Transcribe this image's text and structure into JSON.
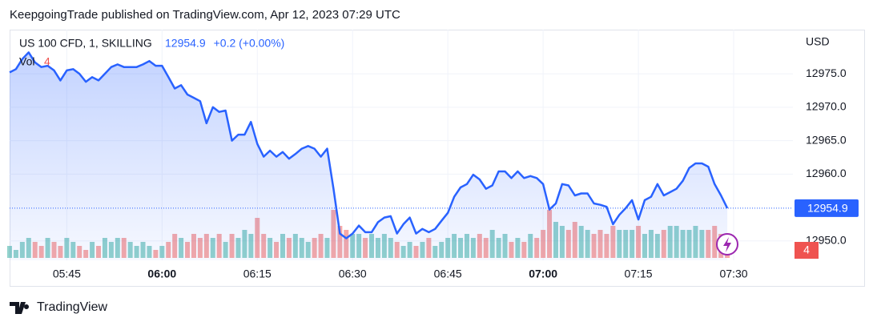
{
  "header": "KeepgoingTrade published on TradingView.com, Apr 12, 2023 07:29 UTC",
  "footer": "TradingView",
  "chart_data": {
    "type": "area",
    "title": "US 100 CFD, 1, SKILLING",
    "change": "+0.2 (+0.00%)",
    "currency": "USD",
    "color": "#2962ff",
    "grid": true,
    "categories": [
      null,
      null,
      null,
      null,
      null,
      null,
      null,
      null,
      null,
      "05:45",
      null,
      null,
      null,
      null,
      null,
      null,
      null,
      null,
      null,
      null,
      null,
      null,
      null,
      null,
      "06:00",
      null,
      null,
      null,
      null,
      null,
      null,
      null,
      null,
      null,
      null,
      null,
      null,
      null,
      null,
      "06:15",
      null,
      null,
      null,
      null,
      null,
      null,
      null,
      null,
      null,
      null,
      null,
      null,
      null,
      null,
      "06:30",
      null,
      null,
      null,
      null,
      null,
      null,
      null,
      null,
      null,
      null,
      null,
      null,
      null,
      null,
      "06:45",
      null,
      null,
      null,
      null,
      null,
      null,
      null,
      null,
      null,
      null,
      null,
      null,
      null,
      null,
      "07:00",
      null,
      null,
      null,
      null,
      null,
      null,
      null,
      null,
      null,
      null,
      null,
      null,
      null,
      null,
      "07:15",
      null,
      null,
      null,
      null,
      null,
      null,
      null,
      null,
      null,
      null,
      null,
      null,
      null,
      null,
      "07:30"
    ],
    "values": [
      12975.2,
      12975.7,
      12977.2,
      12978.2,
      12976.7,
      12976.0,
      12976.2,
      12975.5,
      12974.0,
      12975.5,
      12975.7,
      12975.0,
      12973.8,
      12974.5,
      12974.0,
      12975.0,
      12976.0,
      12976.4,
      12976.0,
      12976.0,
      12976.0,
      12976.4,
      12976.9,
      12976.2,
      12976.2,
      12974.5,
      12972.8,
      12973.3,
      12971.9,
      12971.4,
      12970.9,
      12967.6,
      12970.0,
      12969.3,
      12969.5,
      12965.0,
      12965.9,
      12965.9,
      12967.8,
      12964.5,
      12962.6,
      12963.5,
      12962.6,
      12963.3,
      12962.3,
      12963.0,
      12963.8,
      12964.2,
      12963.8,
      12962.6,
      12963.8,
      12957.8,
      12951.1,
      12950.4,
      12951.1,
      12952.3,
      12951.3,
      12951.3,
      12952.8,
      12953.5,
      12953.7,
      12951.1,
      12952.5,
      12953.5,
      12951.1,
      12951.8,
      12951.3,
      12951.8,
      12953.0,
      12954.2,
      12956.6,
      12958.0,
      12958.5,
      12959.9,
      12959.2,
      12957.8,
      12958.3,
      12960.4,
      12960.4,
      12959.4,
      12960.4,
      12959.4,
      12959.7,
      12959.4,
      12958.5,
      12954.7,
      12955.6,
      12958.5,
      12958.3,
      12956.8,
      12957.1,
      12957.1,
      12955.6,
      12955.4,
      12955.1,
      12952.5,
      12953.9,
      12954.9,
      12956.1,
      12953.2,
      12956.1,
      12956.6,
      12958.5,
      12956.8,
      12957.3,
      12957.8,
      12959.0,
      12960.9,
      12961.6,
      12961.6,
      12961.1,
      12958.5,
      12956.8,
      12954.9,
      null
    ],
    "ylim": [
      12947.1,
      12981.6
    ],
    "yticks": [
      {
        "value": 12950,
        "label": "12950.0"
      },
      {
        "value": 12960,
        "label": "12960.0"
      },
      {
        "value": 12965,
        "label": "12965.0"
      },
      {
        "value": 12970,
        "label": "12970.0"
      },
      {
        "value": 12975,
        "label": "12975.0"
      }
    ],
    "volume": {
      "name": "Vol",
      "up_color": "#26a69a",
      "down_color": "#ef5350",
      "values": [
        3,
        2,
        4,
        5,
        4,
        3,
        5,
        4,
        3,
        5,
        4,
        3,
        2,
        4,
        3,
        5,
        4,
        5,
        5,
        4,
        3,
        4,
        3,
        2,
        3,
        4,
        6,
        5,
        4,
        6,
        5,
        6,
        5,
        6,
        4,
        6,
        5,
        7,
        6,
        10,
        6,
        5,
        4,
        6,
        5,
        6,
        5,
        4,
        5,
        6,
        5,
        12,
        8,
        7,
        6,
        6,
        5,
        6,
        5,
        6,
        5,
        4,
        3,
        4,
        3,
        4,
        5,
        3,
        4,
        5,
        6,
        5,
        6,
        5,
        6,
        5,
        7,
        5,
        6,
        4,
        5,
        4,
        6,
        5,
        7,
        12,
        9,
        8,
        7,
        9,
        8,
        7,
        6,
        7,
        6,
        8,
        7,
        7,
        7,
        8,
        6,
        7,
        6,
        7,
        8,
        8,
        7,
        7,
        8,
        7,
        7,
        8,
        6,
        4,
        null
      ]
    }
  }
}
